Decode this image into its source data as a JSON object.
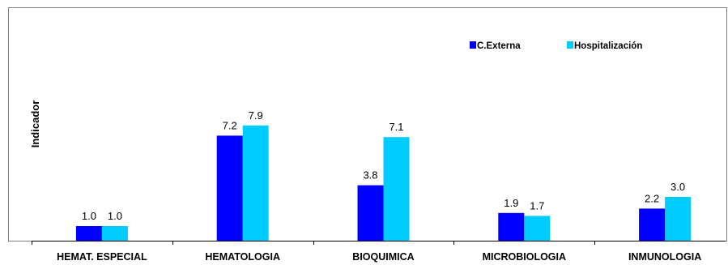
{
  "chart_data": {
    "type": "bar",
    "categories": [
      "HEMAT. ESPECIAL",
      "HEMATOLOGIA",
      "BIOQUIMICA",
      "MICROBIOLOGIA",
      "INMUNOLOGIA"
    ],
    "series": [
      {
        "name": "C.Externa",
        "values": [
          1.0,
          7.2,
          3.8,
          1.9,
          2.2
        ],
        "color": "#0000ff"
      },
      {
        "name": "Hospitalización",
        "values": [
          1.0,
          7.9,
          7.1,
          1.7,
          3.0
        ],
        "color": "#00ccff"
      }
    ],
    "data_labels": [
      [
        "1.0",
        "7.2",
        "3.8",
        "1.9",
        "2.2"
      ],
      [
        "1.0",
        "7.9",
        "7.1",
        "1.7",
        "3.0"
      ]
    ],
    "title": "",
    "xlabel": "",
    "ylabel": "Indicador",
    "ylim": [
      0,
      16
    ],
    "grid": false,
    "legend_position": "top-right"
  }
}
